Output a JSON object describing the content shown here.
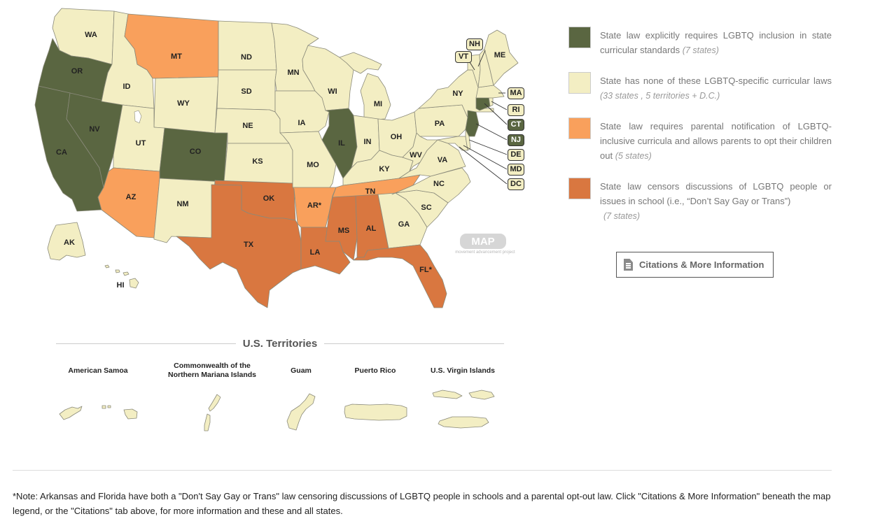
{
  "colors": {
    "inclusion": "#5a6641",
    "none": "#f3eec3",
    "parental_notification": "#f9a05c",
    "censorship": "#d97740",
    "border": "#8a8a7a"
  },
  "legend": [
    {
      "text": "State law explicitly requires LGBTQ inclusion in state curricular standards",
      "count": "(7 states)",
      "color": "#5a6641"
    },
    {
      "text": "State has none of these LGBTQ-specific curricular laws",
      "count": "(33 states , 5 territories + D.C.)",
      "color": "#f3eec3"
    },
    {
      "text": "State law requires parental notification of LGBTQ-inclusive curricula and allows parents to opt their children out",
      "count": "(5 states)",
      "color": "#f9a05c"
    },
    {
      "text": "State law censors discussions of LGBTQ people or issues in school (i.e., “Don’t Say Gay or Trans”)",
      "count": "(7 states)",
      "color": "#d97740"
    }
  ],
  "citations_button": {
    "label": "Citations & More Information",
    "icon": "document-icon"
  },
  "map": {
    "logo": {
      "name": "MAP",
      "tagline": "movement advancement project"
    },
    "state_labels": {
      "WA": "WA",
      "OR": "OR",
      "CA": "CA",
      "NV": "NV",
      "ID": "ID",
      "MT": "MT",
      "WY": "WY",
      "UT": "UT",
      "CO": "CO",
      "AZ": "AZ",
      "NM": "NM",
      "ND": "ND",
      "SD": "SD",
      "NE": "NE",
      "KS": "KS",
      "OK": "OK",
      "TX": "TX",
      "MN": "MN",
      "IA": "IA",
      "MO": "MO",
      "AR": "AR*",
      "LA": "LA",
      "WI": "WI",
      "IL": "IL",
      "MI": "MI",
      "IN": "IN",
      "OH": "OH",
      "KY": "KY",
      "TN": "TN",
      "MS": "MS",
      "AL": "AL",
      "GA": "GA",
      "FL": "FL*",
      "SC": "SC",
      "NC": "NC",
      "VA": "VA",
      "WV": "WV",
      "PA": "PA",
      "NY": "NY",
      "ME": "ME",
      "AK": "AK",
      "HI": "HI"
    },
    "callouts": {
      "NH": "NH",
      "VT": "VT",
      "MA": "MA",
      "RI": "RI",
      "CT": "CT",
      "NJ": "NJ",
      "DE": "DE",
      "MD": "MD",
      "DC": "DC"
    },
    "state_policy": {
      "WA": "none",
      "OR": "inclusion",
      "CA": "inclusion",
      "NV": "inclusion",
      "ID": "none",
      "MT": "parental_notification",
      "WY": "none",
      "UT": "none",
      "CO": "inclusion",
      "AZ": "parental_notification",
      "NM": "none",
      "ND": "none",
      "SD": "none",
      "NE": "none",
      "KS": "none",
      "OK": "censorship",
      "TX": "censorship",
      "MN": "none",
      "IA": "none",
      "MO": "none",
      "AR": "parental_notification",
      "LA": "censorship",
      "WI": "none",
      "IL": "inclusion",
      "MI": "none",
      "IN": "none",
      "OH": "none",
      "KY": "none",
      "TN": "parental_notification",
      "MS": "censorship",
      "AL": "censorship",
      "GA": "none",
      "FL": "censorship",
      "SC": "none",
      "NC": "none",
      "VA": "none",
      "WV": "none",
      "PA": "none",
      "NY": "none",
      "ME": "none",
      "VT": "none",
      "NH": "none",
      "MA": "none",
      "RI": "none",
      "CT": "inclusion",
      "NJ": "inclusion",
      "DE": "none",
      "MD": "none",
      "DC": "none",
      "AK": "none",
      "HI": "none"
    }
  },
  "territories": {
    "title": "U.S. Territories",
    "items": [
      {
        "name": "American Samoa"
      },
      {
        "name": "Commonwealth of the Northern Mariana Islands"
      },
      {
        "name": "Guam"
      },
      {
        "name": "Puerto Rico"
      },
      {
        "name": "U.S. Virgin Islands"
      }
    ]
  },
  "note": "*Note: Arkansas and Florida have both a \"Don't Say Gay or Trans\" law censoring discussions of LGBTQ people in schools and a parental opt-out law. Click \"Citations & More Information\" beneath the map legend, or the \"Citations\" tab above, for more information and these and all states."
}
